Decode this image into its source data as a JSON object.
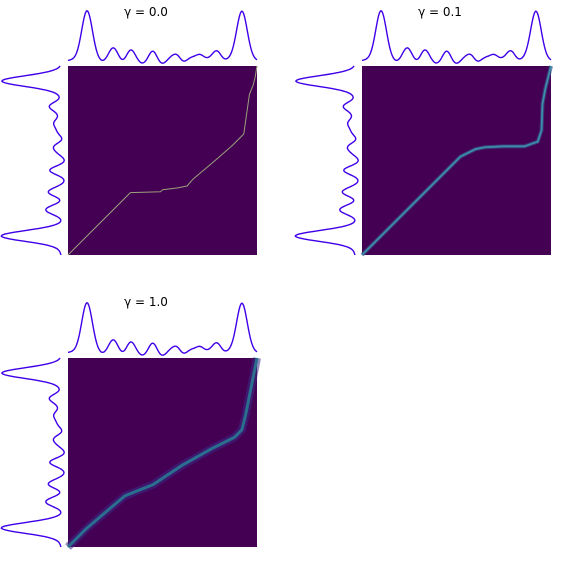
{
  "figure": {
    "description_free": true
  },
  "colors": {
    "marginal": "#3f00e8",
    "background": "#440154",
    "path_thin": "#9aa07a",
    "path_mid": "#3b8fa6",
    "path_wide": "#2a6f8e"
  },
  "chart_data": [
    {
      "type": "heatmap",
      "title": "γ = 0.0",
      "gamma": 0.0,
      "path": [
        [
          0,
          0
        ],
        [
          0.33,
          0.33
        ],
        [
          0.49,
          0.335
        ],
        [
          0.5,
          0.345
        ],
        [
          0.58,
          0.355
        ],
        [
          0.63,
          0.365
        ],
        [
          0.66,
          0.4
        ],
        [
          0.79,
          0.51
        ],
        [
          0.87,
          0.58
        ],
        [
          0.93,
          0.64
        ],
        [
          0.95,
          0.78
        ],
        [
          0.96,
          0.85
        ],
        [
          0.98,
          0.9
        ],
        [
          0.99,
          0.94
        ],
        [
          1,
          1
        ]
      ],
      "style": "thin"
    },
    {
      "type": "heatmap",
      "title": "γ = 0.1",
      "gamma": 0.1,
      "path": [
        [
          0,
          0
        ],
        [
          0.52,
          0.52
        ],
        [
          0.6,
          0.56
        ],
        [
          0.65,
          0.57
        ],
        [
          0.75,
          0.575
        ],
        [
          0.86,
          0.575
        ],
        [
          0.93,
          0.6
        ],
        [
          0.95,
          0.66
        ],
        [
          0.955,
          0.8
        ],
        [
          0.97,
          0.88
        ],
        [
          1,
          1
        ]
      ],
      "style": "mid"
    },
    {
      "type": "heatmap",
      "title": "γ = 1.0",
      "gamma": 1.0,
      "path": [
        [
          0,
          0
        ],
        [
          0.1,
          0.1
        ],
        [
          0.3,
          0.27
        ],
        [
          0.45,
          0.33
        ],
        [
          0.6,
          0.43
        ],
        [
          0.76,
          0.52
        ],
        [
          0.88,
          0.58
        ],
        [
          0.92,
          0.62
        ],
        [
          0.94,
          0.7
        ],
        [
          0.96,
          0.8
        ],
        [
          1,
          1
        ]
      ],
      "style": "wide"
    }
  ],
  "marginal": {
    "x": [
      0.0,
      0.1,
      0.15,
      0.22,
      0.3,
      0.36,
      0.42,
      0.5,
      0.58,
      0.63,
      0.7,
      0.76,
      0.82,
      0.9,
      1.0
    ],
    "peaks": [
      {
        "center": 0.1,
        "height": 1.0,
        "width": 0.028
      },
      {
        "center": 0.92,
        "height": 1.0,
        "width": 0.028
      },
      {
        "center": 0.24,
        "height": 0.22,
        "width": 0.025
      },
      {
        "center": 0.33,
        "height": 0.17,
        "width": 0.022
      },
      {
        "center": 0.45,
        "height": 0.13,
        "width": 0.02
      },
      {
        "center": 0.58,
        "height": 0.12,
        "width": 0.02
      },
      {
        "center": 0.7,
        "height": 0.16,
        "width": 0.022
      },
      {
        "center": 0.79,
        "height": 0.2,
        "width": 0.022
      }
    ]
  }
}
